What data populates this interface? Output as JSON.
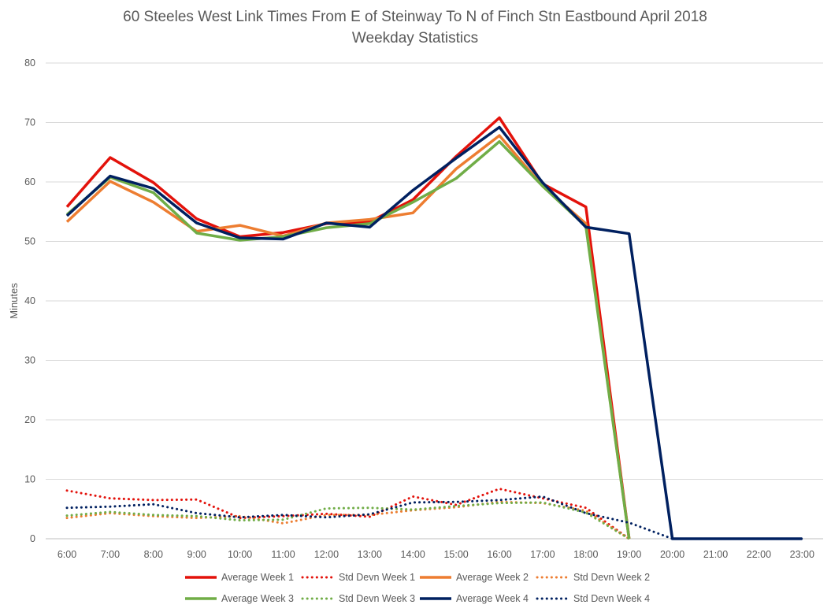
{
  "chart_data": {
    "type": "line",
    "title": "60 Steeles West Link Times From E of Steinway To N of Finch Stn Eastbound April 2018",
    "subtitle": "Weekday Statistics",
    "xlabel": "",
    "ylabel": "Minutes",
    "ylim": [
      0,
      80
    ],
    "yticks": [
      0,
      10,
      20,
      30,
      40,
      50,
      60,
      70,
      80
    ],
    "categories": [
      "6:00",
      "7:00",
      "8:00",
      "9:00",
      "10:00",
      "11:00",
      "12:00",
      "13:00",
      "14:00",
      "15:00",
      "16:00",
      "17:00",
      "18:00",
      "19:00",
      "20:00",
      "21:00",
      "22:00",
      "23:00"
    ],
    "grid": true,
    "legend_position": "bottom",
    "series": [
      {
        "name": "Average Week 1",
        "style": "solid",
        "color": "#e3120b",
        "values": [
          55.8,
          64.1,
          59.9,
          53.8,
          50.8,
          51.5,
          53.0,
          53.3,
          57.0,
          64.3,
          70.8,
          59.7,
          55.8,
          0,
          null,
          null,
          null,
          null
        ]
      },
      {
        "name": "Std Devn Week 1",
        "style": "dotted",
        "color": "#e3120b",
        "values": [
          8.1,
          6.8,
          6.5,
          6.6,
          3.5,
          3.8,
          4.2,
          3.7,
          7.1,
          5.7,
          8.4,
          6.8,
          5.2,
          0,
          null,
          null,
          null,
          null
        ]
      },
      {
        "name": "Average Week 2",
        "style": "solid",
        "color": "#ed7d31",
        "values": [
          53.3,
          60.1,
          56.6,
          51.7,
          52.7,
          50.9,
          53.1,
          53.7,
          54.8,
          62.2,
          67.8,
          59.3,
          53.0,
          0,
          null,
          null,
          null,
          null
        ]
      },
      {
        "name": "Std Devn Week 2",
        "style": "dotted",
        "color": "#ed7d31",
        "values": [
          3.5,
          4.3,
          3.8,
          3.5,
          3.8,
          2.6,
          4.0,
          4.0,
          4.8,
          5.3,
          6.2,
          6.0,
          4.7,
          0,
          null,
          null,
          null,
          null
        ]
      },
      {
        "name": "Average Week 3",
        "style": "solid",
        "color": "#70ad47",
        "values": [
          54.5,
          60.8,
          58.2,
          51.4,
          50.2,
          50.8,
          52.3,
          53.0,
          56.6,
          60.6,
          66.8,
          59.3,
          52.5,
          0,
          null,
          null,
          null,
          null
        ]
      },
      {
        "name": "Std Devn Week 3",
        "style": "dotted",
        "color": "#70ad47",
        "values": [
          3.9,
          4.5,
          4.0,
          3.8,
          3.1,
          3.2,
          5.1,
          5.2,
          4.9,
          5.5,
          6.0,
          6.1,
          4.4,
          0,
          null,
          null,
          null,
          null
        ]
      },
      {
        "name": "Average Week 4",
        "style": "solid",
        "color": "#002060",
        "values": [
          54.3,
          61.0,
          58.9,
          53.1,
          50.6,
          50.4,
          53.1,
          52.4,
          58.6,
          64.0,
          69.2,
          59.9,
          52.4,
          51.3,
          0,
          0,
          0,
          0
        ]
      },
      {
        "name": "Std Devn Week 4",
        "style": "dotted",
        "color": "#002060",
        "values": [
          5.2,
          5.4,
          5.8,
          4.3,
          3.6,
          4.0,
          3.6,
          4.1,
          6.1,
          6.2,
          6.5,
          7.1,
          4.3,
          2.7,
          0,
          0,
          0,
          0
        ]
      }
    ]
  }
}
